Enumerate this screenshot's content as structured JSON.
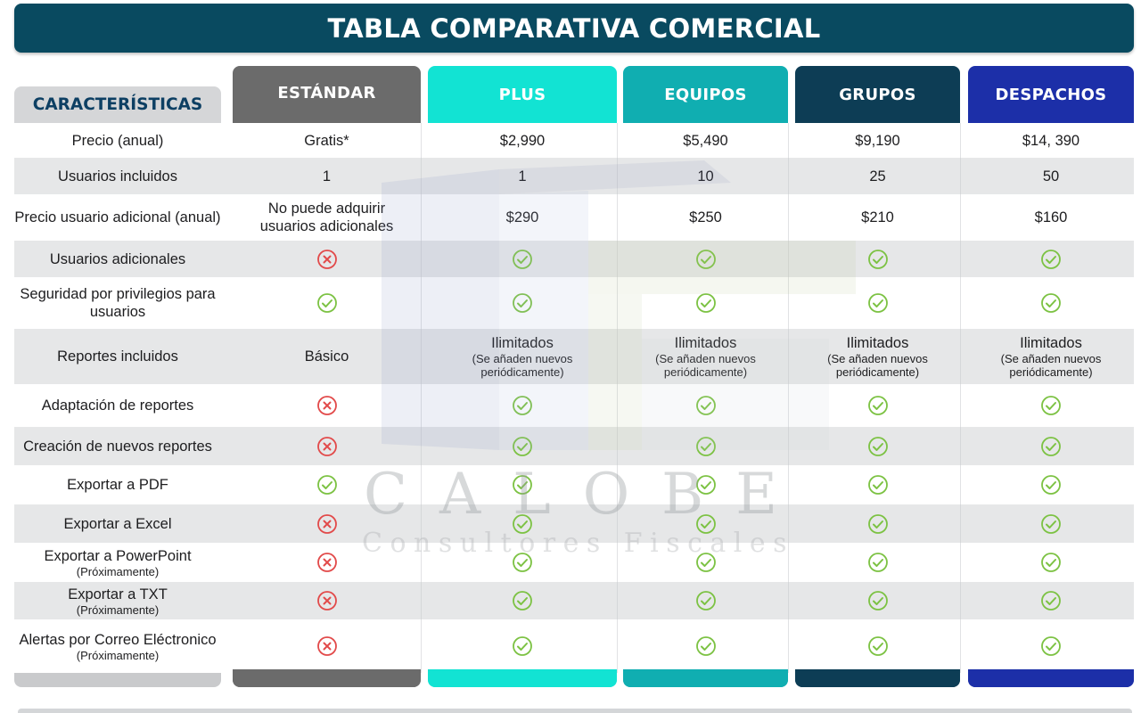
{
  "title": "TABLA COMPARATIVA COMERCIAL",
  "features_header": "CARACTERÍSTICAS",
  "colors": {
    "title_bar": "#094a60",
    "estandar": "#6b6b6b",
    "plus": "#12e3d3",
    "equipos": "#10aeb1",
    "grupos": "#0d3d55",
    "despachos": "#1c2fa8",
    "check": "#7cc243",
    "cross": "#e24a4a"
  },
  "plans": [
    {
      "name": "ESTÁNDAR"
    },
    {
      "name": "PLUS"
    },
    {
      "name": "EQUIPOS"
    },
    {
      "name": "GRUPOS"
    },
    {
      "name": "DESPACHOS"
    }
  ],
  "rows": [
    {
      "label": "Precio (anual)",
      "values": [
        "Gratis*",
        "$2,990",
        "$5,490",
        "$9,190",
        "$14, 390"
      ]
    },
    {
      "label": "Usuarios incluidos",
      "values": [
        "1",
        "1",
        "10",
        "25",
        "50"
      ]
    },
    {
      "label": "Precio usuario adicional (anual)",
      "values": [
        "No puede adquirir usuarios adicionales",
        "$290",
        "$250",
        "$210",
        "$160"
      ]
    },
    {
      "label": "Usuarios adicionales",
      "values": [
        "cross",
        "check",
        "check",
        "check",
        "check"
      ]
    },
    {
      "label": "Seguridad por privilegios para usuarios",
      "values": [
        "check",
        "check",
        "check",
        "check",
        "check"
      ]
    },
    {
      "label": "Reportes incluidos",
      "values": [
        "Básico",
        "Ilimitados",
        "Ilimitados",
        "Ilimitados",
        "Ilimitados"
      ],
      "subs": [
        "",
        "(Se añaden nuevos periódicamente)",
        "(Se añaden nuevos periódicamente)",
        "(Se añaden nuevos periódicamente)",
        "(Se añaden nuevos periódicamente)"
      ]
    },
    {
      "label": "Adaptación de reportes",
      "values": [
        "cross",
        "check",
        "check",
        "check",
        "check"
      ]
    },
    {
      "label": "Creación de nuevos reportes",
      "values": [
        "cross",
        "check",
        "check",
        "check",
        "check"
      ]
    },
    {
      "label": "Exportar a PDF",
      "values": [
        "check",
        "check",
        "check",
        "check",
        "check"
      ]
    },
    {
      "label": "Exportar a Excel",
      "values": [
        "cross",
        "check",
        "check",
        "check",
        "check"
      ]
    },
    {
      "label": "Exportar a PowerPoint",
      "label_sub": "(Próximamente)",
      "values": [
        "cross",
        "check",
        "check",
        "check",
        "check"
      ]
    },
    {
      "label": "Exportar a TXT",
      "label_sub": "(Próximamente)",
      "values": [
        "cross",
        "check",
        "check",
        "check",
        "check"
      ]
    },
    {
      "label": "Alertas por Correo Eléctronico",
      "label_sub": "(Próximamente)",
      "values": [
        "cross",
        "check",
        "check",
        "check",
        "check"
      ]
    }
  ],
  "watermark": {
    "brand": "CALOBE",
    "tagline": "Consultores Fiscales"
  }
}
